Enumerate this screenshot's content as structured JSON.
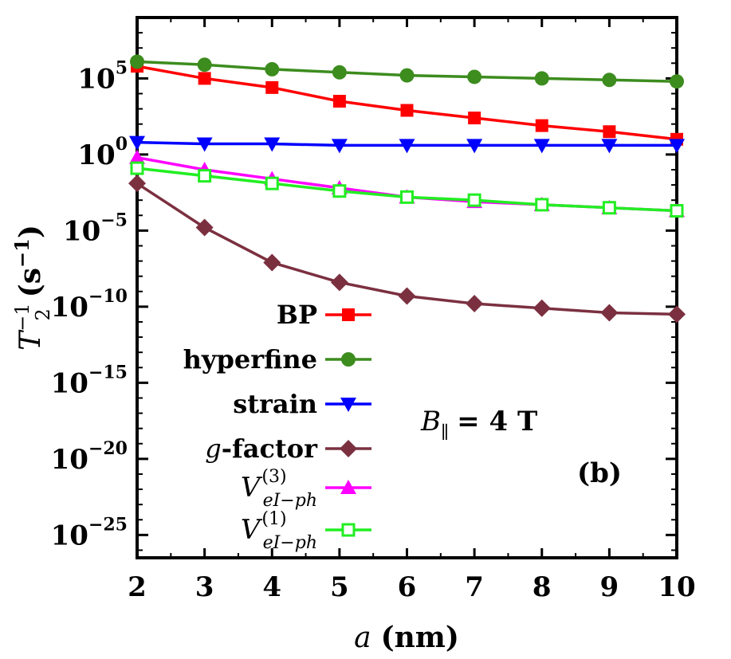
{
  "chart_data": {
    "type": "line",
    "xlabel_var": "a",
    "xlabel_unit": "(nm)",
    "ylabel_var": "T",
    "ylabel_sub": "2",
    "ylabel_sup": "−1",
    "ylabel_unit_open": "(s",
    "ylabel_unit_sup": "−1",
    "ylabel_unit_close": ")",
    "y_scale": "log",
    "xlim": [
      2,
      10
    ],
    "ylim_exp": [
      -26.5,
      9.0
    ],
    "x_ticks": [
      2,
      3,
      4,
      5,
      6,
      7,
      8,
      9,
      10
    ],
    "x_tick_labels": [
      "2",
      "3",
      "4",
      "5",
      "6",
      "7",
      "8",
      "9",
      "10"
    ],
    "y_ticks": [
      {
        "base": "10",
        "exp": "5",
        "value": 100000.0
      },
      {
        "base": "10",
        "exp": "0",
        "value": 1
      },
      {
        "base": "10",
        "exp": "−5",
        "value": 1e-05
      },
      {
        "base": "10",
        "exp": "−10",
        "value": 1e-10
      },
      {
        "base": "10",
        "exp": "−15",
        "value": 1e-15
      },
      {
        "base": "10",
        "exp": "−20",
        "value": 1e-20
      },
      {
        "base": "10",
        "exp": "−25",
        "value": 1e-25
      }
    ],
    "grid": false,
    "legend_position": "left",
    "x": [
      2,
      3,
      4,
      5,
      6,
      7,
      8,
      9,
      10
    ],
    "series": [
      {
        "name": "BP",
        "color": "#ff0000",
        "marker": "square-filled",
        "log10_values": [
          5.8,
          5.0,
          4.4,
          3.5,
          2.9,
          2.4,
          1.9,
          1.5,
          1.0
        ]
      },
      {
        "name": "hyperfine",
        "color": "#3c8c1e",
        "marker": "circle-filled",
        "log10_values": [
          6.1,
          5.9,
          5.6,
          5.4,
          5.2,
          5.1,
          5.0,
          4.9,
          4.8
        ]
      },
      {
        "name": "strain",
        "color": "#0000ff",
        "marker": "triangle-down-filled",
        "log10_values": [
          0.8,
          0.7,
          0.7,
          0.6,
          0.6,
          0.6,
          0.6,
          0.6,
          0.6
        ]
      },
      {
        "name_italic": "g",
        "name": "-factor",
        "color": "#7b3040",
        "marker": "diamond-filled",
        "log10_values": [
          -1.9,
          -4.8,
          -7.1,
          -8.4,
          -9.3,
          -9.8,
          -10.1,
          -10.4,
          -10.5
        ]
      },
      {
        "name_var": "V",
        "name_sup": "(3)",
        "name_sub": "eI−ph",
        "color": "#ff00ff",
        "marker": "triangle-up-filled",
        "log10_values": [
          -0.2,
          -1.0,
          -1.6,
          -2.2,
          -2.8,
          -3.1,
          -3.3,
          -3.5,
          -3.7
        ]
      },
      {
        "name_var": "V",
        "name_sup": "(1)",
        "name_sub": "eI−ph",
        "color": "#22ee22",
        "marker": "square-open",
        "log10_values": [
          -0.9,
          -1.4,
          -1.9,
          -2.4,
          -2.8,
          -3.0,
          -3.3,
          -3.5,
          -3.7
        ]
      }
    ],
    "annotations": [
      {
        "kind": "field",
        "var": "B",
        "sub": "∥",
        "rest": "= 4 T"
      },
      {
        "kind": "panel",
        "text": "(b)"
      }
    ]
  }
}
